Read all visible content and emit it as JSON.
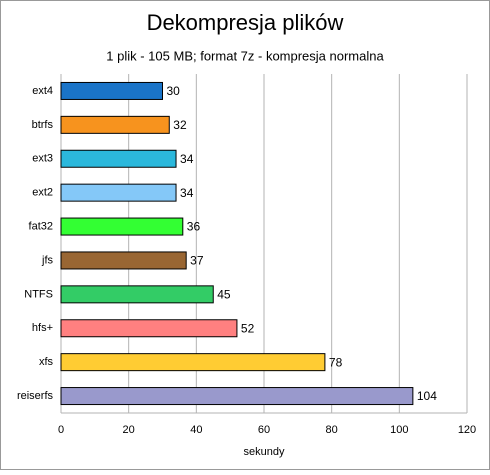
{
  "chart_data": {
    "type": "hbar",
    "title": "Dekompresja plików",
    "subtitle": "1 plik - 105 MB; format 7z - kompresja normalna",
    "x_label": "sekundy",
    "categories": [
      "ext4",
      "btrfs",
      "ext3",
      "ext2",
      "fat32",
      "jfs",
      "NTFS",
      "hfs+",
      "xfs",
      "reiserfs"
    ],
    "values": [
      30,
      32,
      34,
      34,
      36,
      37,
      45,
      52,
      78,
      104
    ],
    "colors": [
      "#1a74c8",
      "#f7931e",
      "#2bb8dc",
      "#84c8f8",
      "#33ff33",
      "#996633",
      "#33cc66",
      "#ff8080",
      "#ffcc33",
      "#9999cc"
    ],
    "xlim": [
      0,
      120
    ],
    "xticks": [
      0,
      20,
      40,
      60,
      80,
      100,
      120
    ],
    "grid": true
  }
}
